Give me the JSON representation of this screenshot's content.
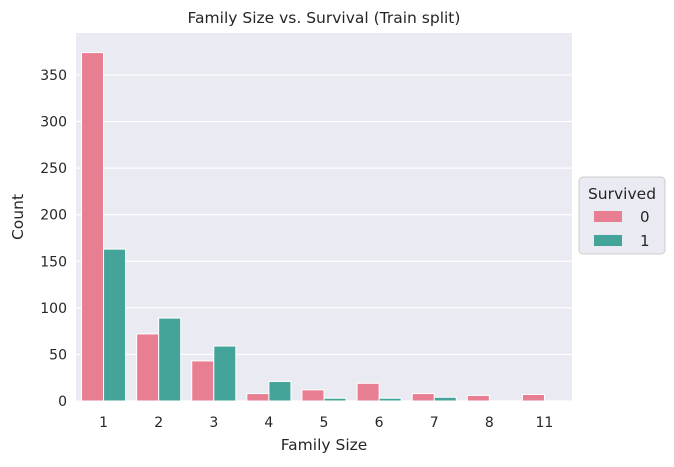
{
  "chart_data": {
    "type": "bar",
    "title": "Family Size vs. Survival (Train split)",
    "xlabel": "Family Size",
    "ylabel": "Count",
    "categories": [
      "1",
      "2",
      "3",
      "4",
      "5",
      "6",
      "7",
      "8",
      "11"
    ],
    "series": [
      {
        "name": "0",
        "values": [
          374,
          72,
          43,
          8,
          12,
          19,
          8,
          6,
          7
        ]
      },
      {
        "name": "1",
        "values": [
          163,
          89,
          59,
          21,
          3,
          3,
          4,
          0,
          0
        ]
      }
    ],
    "ylim": [
      0,
      395
    ],
    "yticks": [
      0,
      50,
      100,
      150,
      200,
      250,
      300,
      350
    ],
    "grid": true,
    "legend": {
      "title": "Survived",
      "placement": "right"
    },
    "colors": {
      "0": "#e87e91",
      "1": "#45a49a",
      "background": "#eaeaf2",
      "grid": "#ffffff"
    }
  }
}
